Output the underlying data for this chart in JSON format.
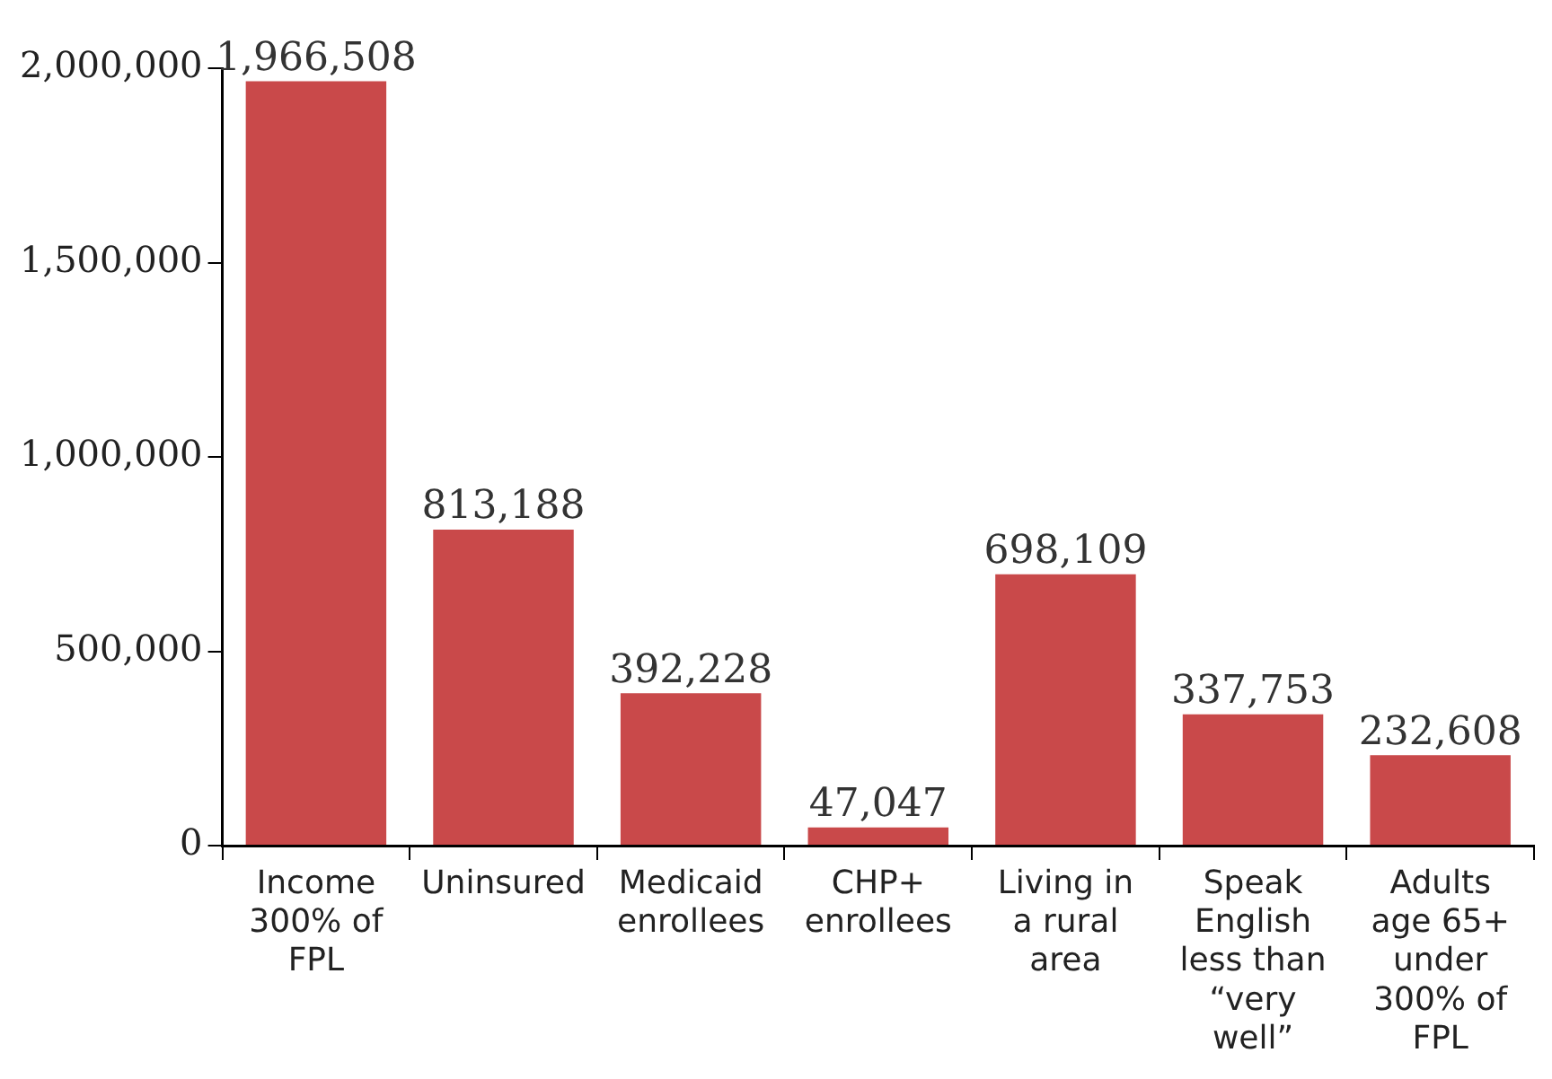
{
  "chart_data": {
    "type": "bar",
    "categories": [
      "Income 300% of FPL",
      "Uninsured",
      "Medicaid enrollees",
      "CHP+ enrollees",
      "Living in a rural area",
      "Speak English less than “very well”",
      "Adults age 65+ under 300% of FPL"
    ],
    "values": [
      1966508,
      813188,
      392228,
      47047,
      698109,
      337753,
      232608
    ],
    "value_labels": [
      "1,966,508",
      "813,188",
      "392,228",
      "47,047",
      "698,109",
      "337,753",
      "232,608"
    ],
    "color": "#c9494a",
    "ylim": [
      0,
      2000000
    ],
    "yticks": [
      {
        "value": 0,
        "label": "0"
      },
      {
        "value": 500000,
        "label": "500,000"
      },
      {
        "value": 1000000,
        "label": "1,000,000"
      },
      {
        "value": 1500000,
        "label": "1,500,000"
      },
      {
        "value": 2000000,
        "label": "2,000,000"
      }
    ],
    "grid": false,
    "legend": false
  }
}
